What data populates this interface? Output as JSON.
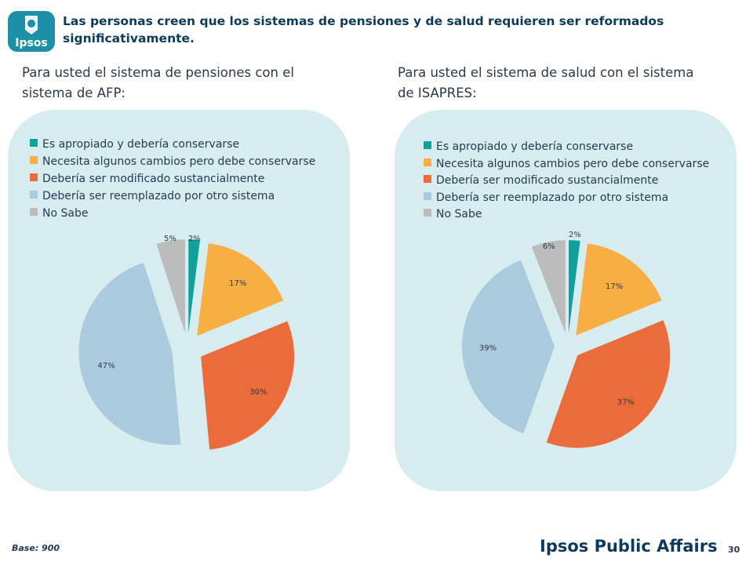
{
  "header": {
    "logo_text": "Ipsos",
    "title": "Las personas creen que los sistemas de pensiones y de salud requieren ser reformados significativamente."
  },
  "colors": {
    "teal": "#12a19a",
    "orange_light": "#f9ae43",
    "orange_dark": "#ec6b3a",
    "light_blue": "#aacbdd",
    "gray": "#bcbcbc",
    "panel": "#d7ecee",
    "title": "#0e3a5a"
  },
  "chart_data": [
    {
      "type": "pie",
      "subtitle": "Para usted el sistema de pensiones con el sistema de AFP:",
      "legend_position": "top-left",
      "categories": [
        "Es apropiado y debería conservarse",
        "Necesita algunos cambios pero debe conservarse",
        "Debería ser modificado sustancialmente",
        "Debería ser reemplazado por otro sistema",
        "No Sabe"
      ],
      "values": [
        2,
        17,
        30,
        47,
        5
      ],
      "labels": [
        "2%",
        "17%",
        "30%",
        "47%",
        "5%"
      ]
    },
    {
      "type": "pie",
      "subtitle": "Para usted el sistema de salud con el sistema de ISAPRES:",
      "legend_position": "top-left",
      "categories": [
        "Es apropiado y debería conservarse",
        "Necesita algunos cambios pero debe conservarse",
        "Debería ser modificado sustancialmente",
        "Debería ser reemplazado por otro sistema",
        "No Sabe"
      ],
      "values": [
        2,
        17,
        37,
        39,
        6
      ],
      "labels": [
        "2%",
        "17%",
        "37%",
        "39%",
        "6%"
      ]
    }
  ],
  "footer": {
    "base": "Base: 900",
    "brand": "Ipsos Public Affairs",
    "page_number": "30"
  }
}
